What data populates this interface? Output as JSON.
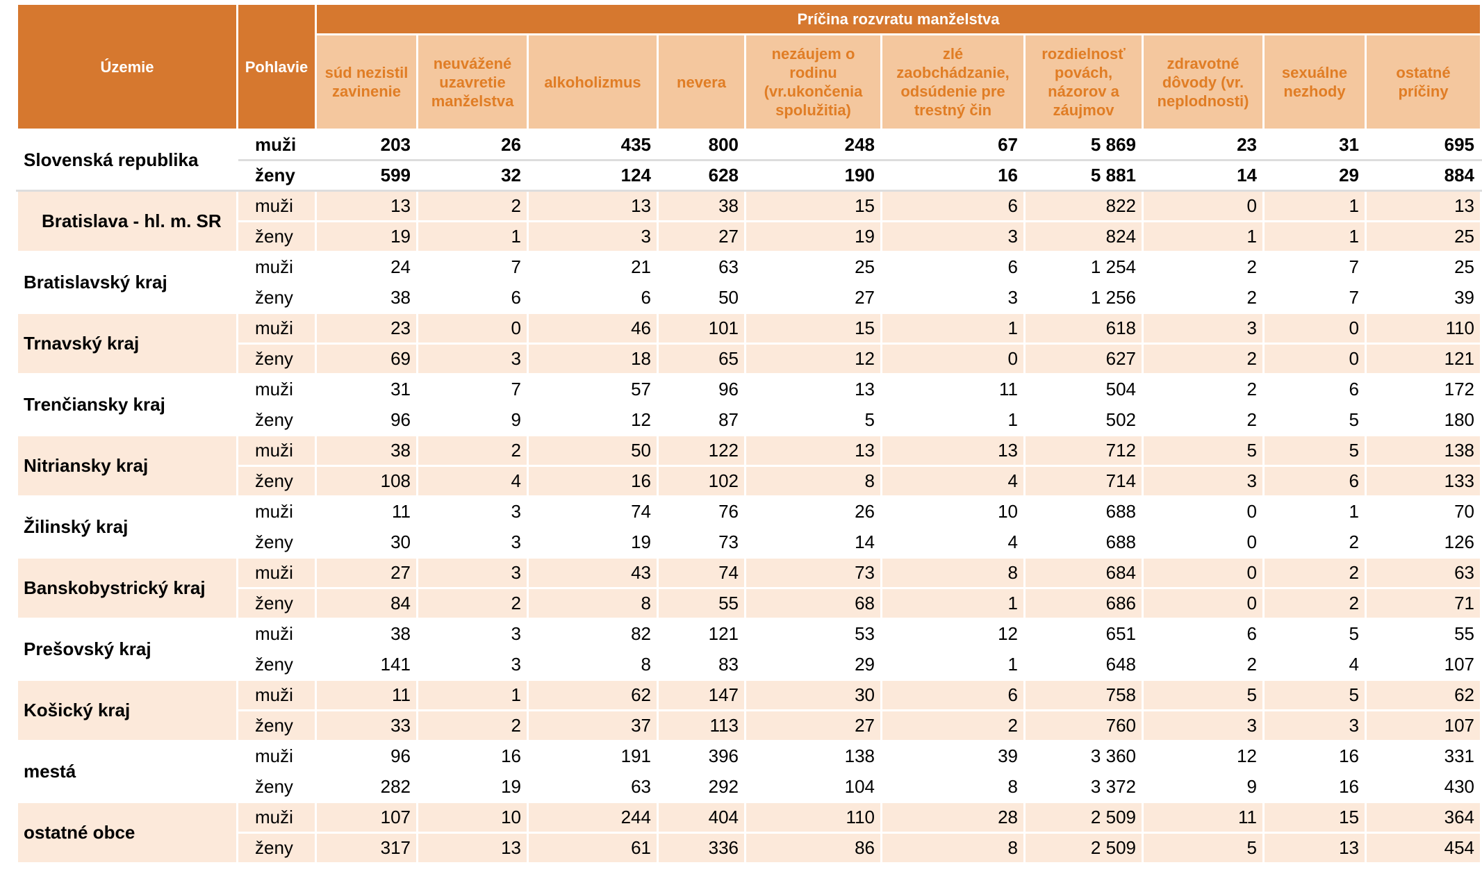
{
  "header": {
    "territory": "Územie",
    "sex": "Pohlavie",
    "group": "Príčina rozvratu manželstva",
    "causes": [
      "súd nezistil zavinenie",
      "neuvážené uzavretie manželstva",
      "alkoholizmus",
      "nevera",
      "nezáujem o rodinu (vr.ukončenia spolužitia)",
      "zlé zaobchádzanie, odsúdenie pre trestný čin",
      "rozdielnosť povách, názorov a záujmov",
      "zdravotné dôvody (vr. neplodnosti)",
      "sexuálne nezhody",
      "ostatné príčiny"
    ]
  },
  "regions": [
    {
      "name": "Slovenská republika",
      "rows": [
        {
          "sex": "muži",
          "values": [
            203,
            26,
            435,
            800,
            248,
            67,
            "5 869",
            23,
            31,
            695
          ]
        },
        {
          "sex": "ženy",
          "values": [
            599,
            32,
            124,
            628,
            190,
            16,
            "5 881",
            14,
            29,
            884
          ]
        }
      ]
    },
    {
      "name": "Bratislava - hl. m. SR",
      "rows": [
        {
          "sex": "muži",
          "values": [
            13,
            2,
            13,
            38,
            15,
            6,
            822,
            0,
            1,
            13
          ]
        },
        {
          "sex": "ženy",
          "values": [
            19,
            1,
            3,
            27,
            19,
            3,
            824,
            1,
            1,
            25
          ]
        }
      ]
    },
    {
      "name": "Bratislavský kraj",
      "rows": [
        {
          "sex": "muži",
          "values": [
            24,
            7,
            21,
            63,
            25,
            6,
            "1 254",
            2,
            7,
            25
          ]
        },
        {
          "sex": "ženy",
          "values": [
            38,
            6,
            6,
            50,
            27,
            3,
            "1 256",
            2,
            7,
            39
          ]
        }
      ]
    },
    {
      "name": "Trnavský kraj",
      "rows": [
        {
          "sex": "muži",
          "values": [
            23,
            0,
            46,
            101,
            15,
            1,
            618,
            3,
            0,
            110
          ]
        },
        {
          "sex": "ženy",
          "values": [
            69,
            3,
            18,
            65,
            12,
            0,
            627,
            2,
            0,
            121
          ]
        }
      ]
    },
    {
      "name": "Trenčiansky kraj",
      "rows": [
        {
          "sex": "muži",
          "values": [
            31,
            7,
            57,
            96,
            13,
            11,
            504,
            2,
            6,
            172
          ]
        },
        {
          "sex": "ženy",
          "values": [
            96,
            9,
            12,
            87,
            5,
            1,
            502,
            2,
            5,
            180
          ]
        }
      ]
    },
    {
      "name": "Nitriansky kraj",
      "rows": [
        {
          "sex": "muži",
          "values": [
            38,
            2,
            50,
            122,
            13,
            13,
            712,
            5,
            5,
            138
          ]
        },
        {
          "sex": "ženy",
          "values": [
            108,
            4,
            16,
            102,
            8,
            4,
            714,
            3,
            6,
            133
          ]
        }
      ]
    },
    {
      "name": "Žilinský kraj",
      "rows": [
        {
          "sex": "muži",
          "values": [
            11,
            3,
            74,
            76,
            26,
            10,
            688,
            0,
            1,
            70
          ]
        },
        {
          "sex": "ženy",
          "values": [
            30,
            3,
            19,
            73,
            14,
            4,
            688,
            0,
            2,
            126
          ]
        }
      ]
    },
    {
      "name": "Banskobystrický kraj",
      "rows": [
        {
          "sex": "muži",
          "values": [
            27,
            3,
            43,
            74,
            73,
            8,
            684,
            0,
            2,
            63
          ]
        },
        {
          "sex": "ženy",
          "values": [
            84,
            2,
            8,
            55,
            68,
            1,
            686,
            0,
            2,
            71
          ]
        }
      ]
    },
    {
      "name": "Prešovský kraj",
      "rows": [
        {
          "sex": "muži",
          "values": [
            38,
            3,
            82,
            121,
            53,
            12,
            651,
            6,
            5,
            55
          ]
        },
        {
          "sex": "ženy",
          "values": [
            141,
            3,
            8,
            83,
            29,
            1,
            648,
            2,
            4,
            107
          ]
        }
      ]
    },
    {
      "name": "Košický kraj",
      "rows": [
        {
          "sex": "muži",
          "values": [
            11,
            1,
            62,
            147,
            30,
            6,
            758,
            5,
            5,
            62
          ]
        },
        {
          "sex": "ženy",
          "values": [
            33,
            2,
            37,
            113,
            27,
            2,
            760,
            3,
            3,
            107
          ]
        }
      ]
    },
    {
      "name": "mestá",
      "rows": [
        {
          "sex": "muži",
          "values": [
            96,
            16,
            191,
            396,
            138,
            39,
            "3 360",
            12,
            16,
            331
          ]
        },
        {
          "sex": "ženy",
          "values": [
            282,
            19,
            63,
            292,
            104,
            8,
            "3 372",
            9,
            16,
            430
          ]
        }
      ]
    },
    {
      "name": "ostatné obce",
      "rows": [
        {
          "sex": "muži",
          "values": [
            107,
            10,
            244,
            404,
            110,
            28,
            "2 509",
            11,
            15,
            364
          ]
        },
        {
          "sex": "ženy",
          "values": [
            317,
            13,
            61,
            336,
            86,
            8,
            "2 509",
            5,
            13,
            454
          ]
        }
      ]
    }
  ]
}
